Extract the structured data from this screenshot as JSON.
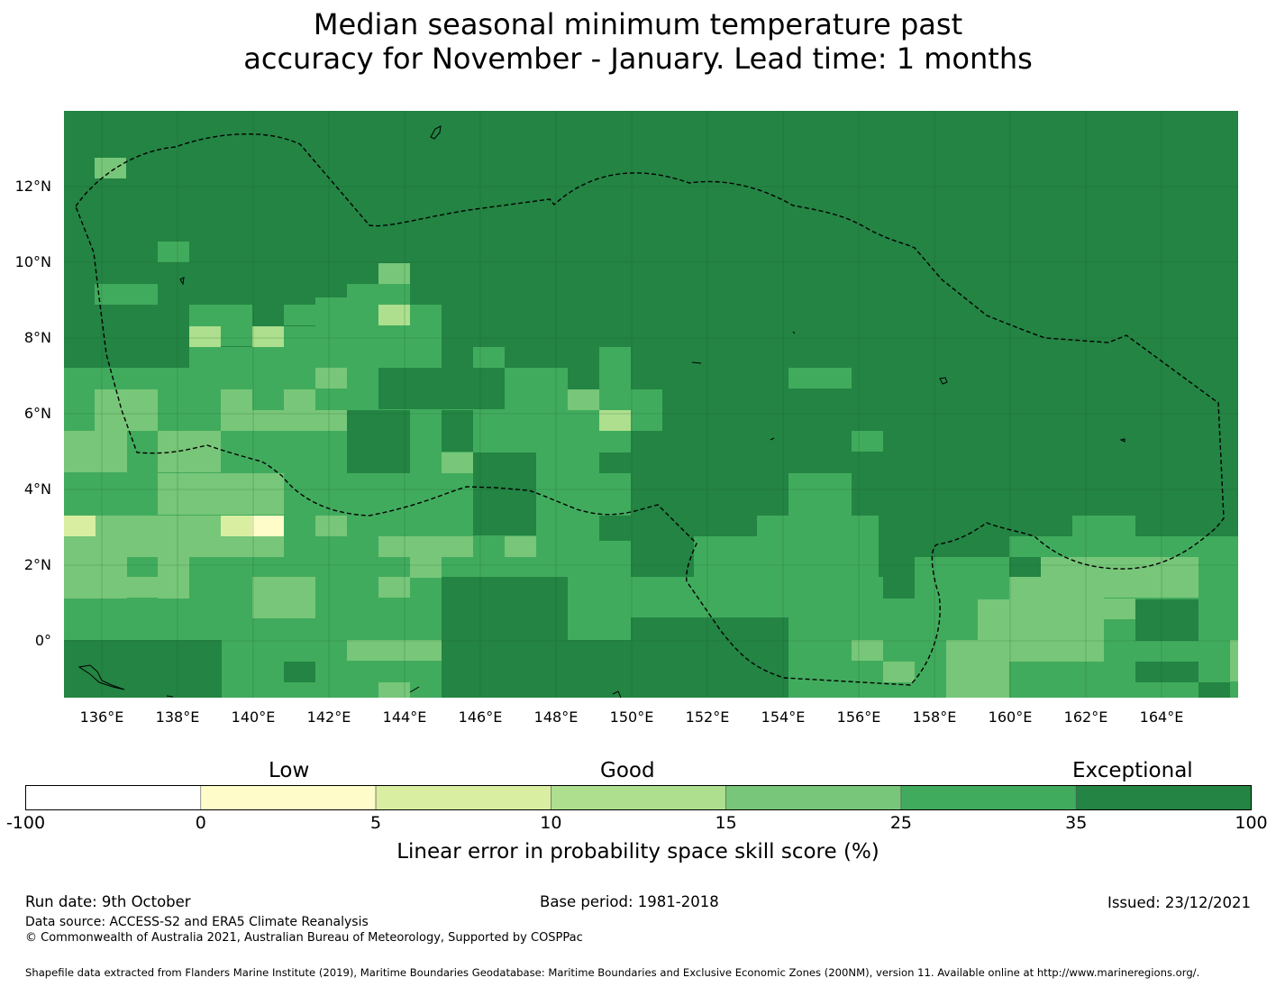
{
  "title": {
    "line1": "Median seasonal minimum temperature past",
    "line2": "accuracy for November - January. Lead time: 1 months"
  },
  "map": {
    "lon_ticks": [
      "136°E",
      "138°E",
      "140°E",
      "142°E",
      "144°E",
      "146°E",
      "148°E",
      "150°E",
      "152°E",
      "154°E",
      "156°E",
      "158°E",
      "160°E",
      "162°E",
      "164°E"
    ],
    "lat_ticks": [
      "12°N",
      "10°N",
      "8°N",
      "6°N",
      "4°N",
      "2°N",
      "0°"
    ],
    "lon_range": [
      135,
      166
    ],
    "lat_range": [
      -1.5,
      14
    ],
    "boundary": "dashed EEZ boundary (Federated States of Micronesia)"
  },
  "legend": {
    "categories": [
      "Low",
      "Good",
      "Exceptional"
    ],
    "ticks": [
      "-100",
      "0",
      "5",
      "10",
      "15",
      "25",
      "35",
      "100"
    ],
    "colors": [
      "#ffffff",
      "#fefcc8",
      "#d9eea0",
      "#addf8e",
      "#78c679",
      "#41ab5d",
      "#238443"
    ],
    "label": "Linear error in probability space skill score (%)"
  },
  "footer": {
    "run_date": "Run date: 9th October",
    "base_period": "Base period: 1981-2018",
    "issued": "Issued: 23/12/2021",
    "source": "Data source: ACCESS-S2 and ERA5 Climate Reanalysis",
    "copyright": "© Commonwealth of Australia 2021, Australian Bureau of Meteorology, Supported by COSPPac",
    "shapefile": "Shapefile data extracted from Flanders Marine Institute (2019), Maritime Boundaries Geodatabase: Maritime Boundaries and Exclusive Economic Zones (200NM), version 11. Available online at http://www.marineregions.org/."
  },
  "colors": {
    "dark": "#238443",
    "medium": "#41ab5d",
    "light": "#78c679",
    "pale": "#addf8e",
    "palest": "#d9eea0"
  }
}
